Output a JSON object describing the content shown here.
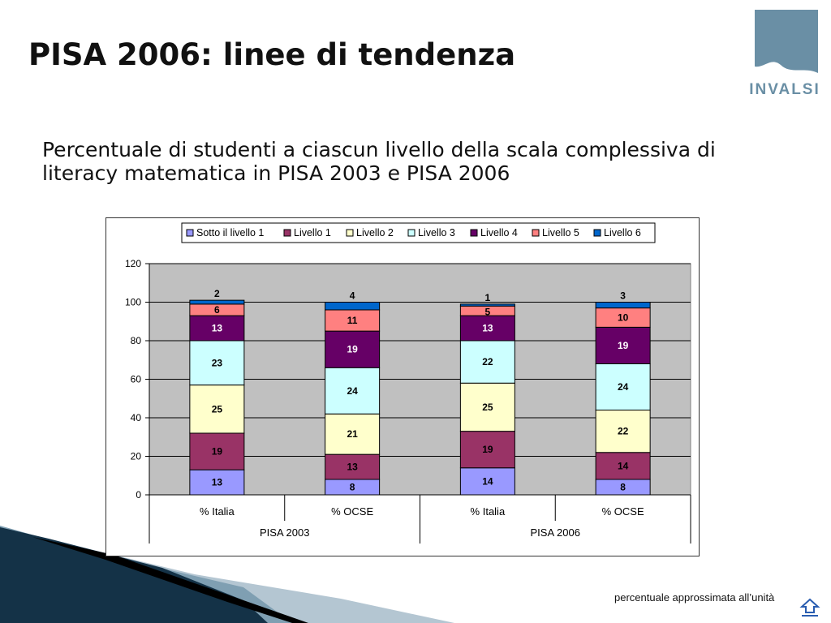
{
  "slide": {
    "title": "PISA 2006: linee di tendenza",
    "subtitle": "Percentuale di studenti a ciascun livello della scala complessiva di literacy matematica in PISA 2003 e PISA 2006",
    "footnote": "percentuale approssimata all’unità",
    "logo_text": "INVALSI",
    "back_icon": "return-arrow-icon"
  },
  "colors": {
    "plot_bg": "#c0c0c0",
    "logo": "#6a8fa5",
    "deco_dark": "#143247",
    "deco_mid": "#7f9fb2"
  },
  "chart_data": {
    "type": "bar",
    "stacked": true,
    "categories": [
      "% Italia",
      "% OCSE",
      "% Italia",
      "% OCSE"
    ],
    "groups": [
      {
        "label": "PISA 2003",
        "span": [
          0,
          1
        ]
      },
      {
        "label": "PISA 2006",
        "span": [
          2,
          3
        ]
      }
    ],
    "series": [
      {
        "name": "Sotto il livello 1",
        "color": "#9999ff",
        "values": [
          13,
          8,
          14,
          8
        ]
      },
      {
        "name": "Livello 1",
        "color": "#993366",
        "values": [
          19,
          13,
          19,
          14
        ]
      },
      {
        "name": "Livello 2",
        "color": "#ffffcc",
        "values": [
          25,
          21,
          25,
          22
        ]
      },
      {
        "name": "Livello 3",
        "color": "#ccffff",
        "values": [
          23,
          24,
          22,
          24
        ]
      },
      {
        "name": "Livello 4",
        "color": "#660066",
        "values": [
          13,
          19,
          13,
          19
        ]
      },
      {
        "name": "Livello 5",
        "color": "#ff8080",
        "values": [
          6,
          11,
          5,
          10
        ]
      },
      {
        "name": "Livello 6",
        "color": "#0066cc",
        "values": [
          2,
          4,
          1,
          3
        ]
      }
    ],
    "ylim": [
      0,
      120
    ],
    "yticks": [
      "0",
      "20",
      "40",
      "60",
      "80",
      "100",
      "120"
    ],
    "grid": true,
    "legend": "top"
  }
}
